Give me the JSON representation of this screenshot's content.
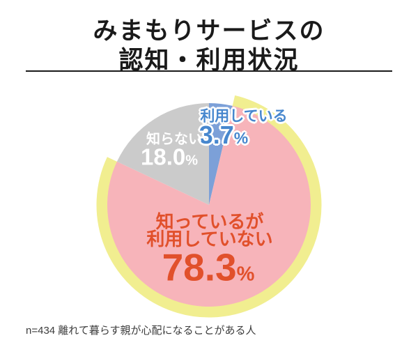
{
  "title": {
    "line1": "みまもりサービスの",
    "line2": "認知・利用状況"
  },
  "percent_sign": "%",
  "chart_data": {
    "type": "pie",
    "title": "みまもりサービスの認知・利用状況",
    "unit": "%",
    "start_angle_deg": 0,
    "direction": "clockwise",
    "legend_position": "labels-on-slices",
    "highlight_ring_color": "#F1EE90",
    "slices": [
      {
        "key": "using",
        "label": "利用している",
        "value": 3.7,
        "display_value": "3.7",
        "color": "#7CA0D8",
        "text_color": "#4787CE",
        "highlighted": false
      },
      {
        "key": "know-not-using",
        "label": "知っているが利用していない",
        "label_lines": [
          "知っているが",
          "利用していない"
        ],
        "value": 78.3,
        "display_value": "78.3",
        "color": "#F7B4BA",
        "text_color": "#E1502B",
        "highlighted": true
      },
      {
        "key": "dont-know",
        "label": "知らない",
        "value": 18.0,
        "display_value": "18.0",
        "color": "#CBCBCB",
        "text_color": "#FFFFFF",
        "highlighted": false
      }
    ]
  },
  "footer": {
    "note": "n=434 離れて暮らす親が心配になることがある人"
  }
}
